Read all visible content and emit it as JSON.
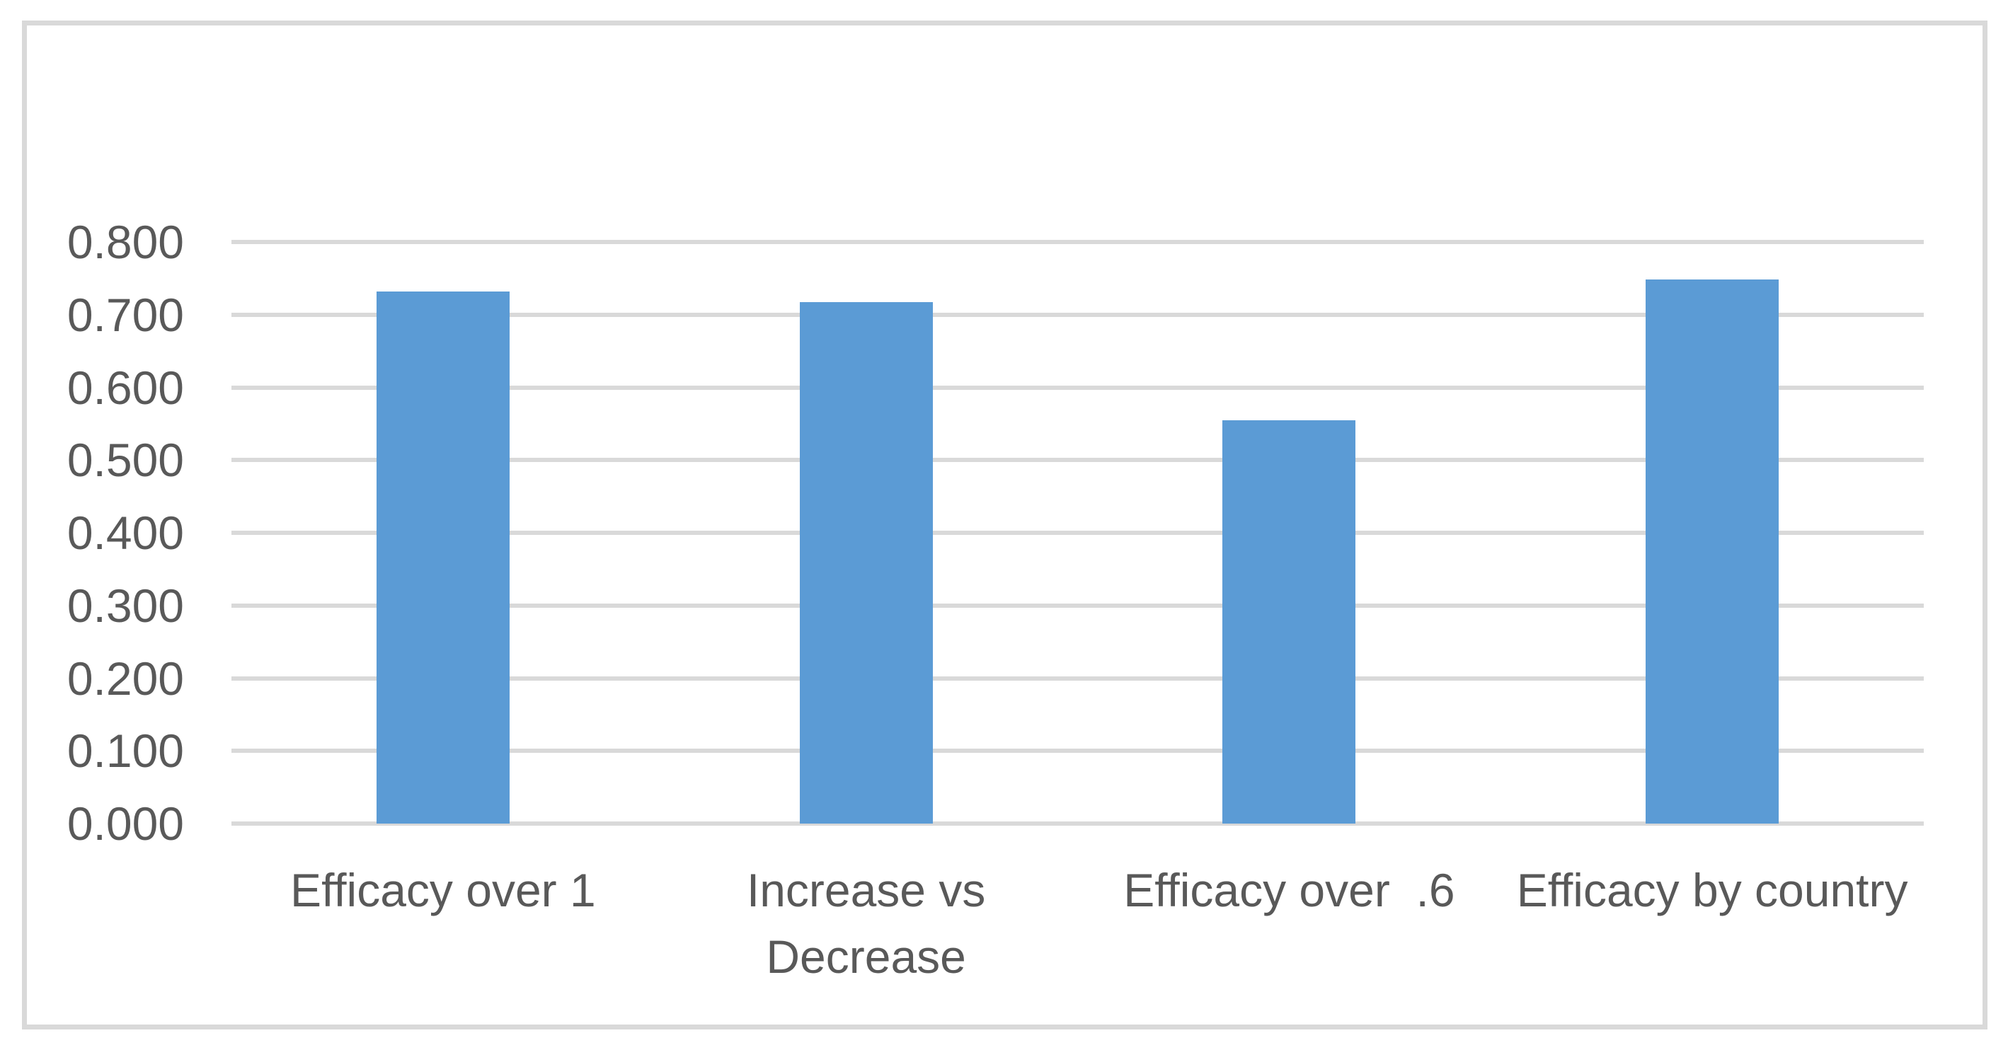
{
  "chart_data": {
    "type": "bar",
    "categories": [
      "Efficacy over 1",
      "Increase vs\nDecrease",
      "Efficacy over  .6",
      "Efficacy by country"
    ],
    "values": [
      0.732,
      0.717,
      0.555,
      0.748
    ],
    "yticks": [
      "0.000",
      "0.100",
      "0.200",
      "0.300",
      "0.400",
      "0.500",
      "0.600",
      "0.700",
      "0.800"
    ],
    "ylim": [
      0,
      0.8
    ],
    "grid": "on",
    "legend": "none",
    "colors": {
      "bar": "#5B9BD5",
      "gridline": "#D9D9D9",
      "border": "#D9D9D9",
      "label": "#595959",
      "background": "#FFFFFF"
    }
  }
}
